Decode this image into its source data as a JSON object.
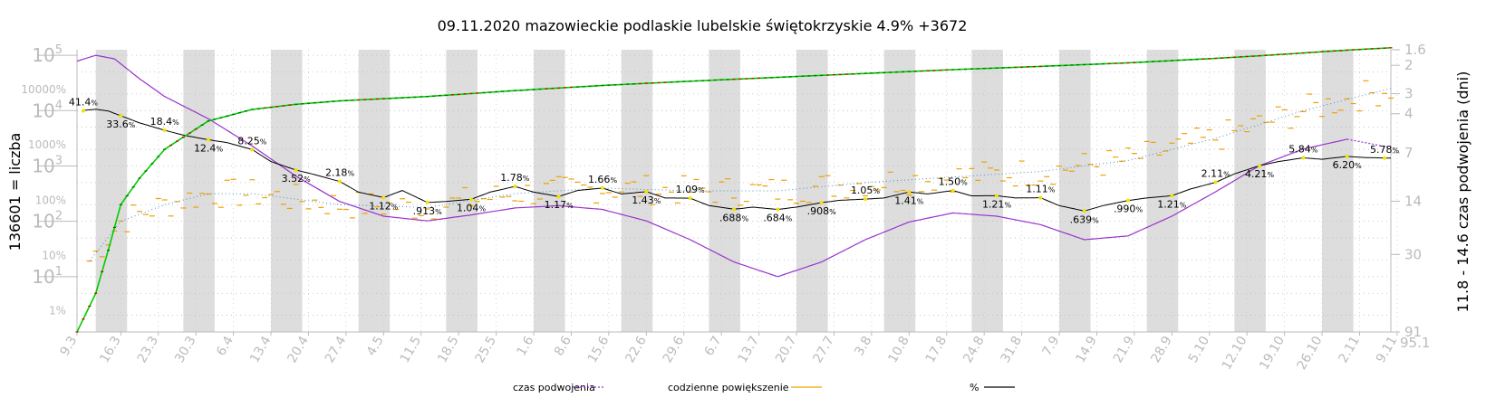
{
  "chart_data": {
    "type": "line",
    "title": "09.11.2020 mazowieckie podlaskie lubelskie świętokrzyskie 4.9% +3672",
    "ylabel_left": "136601 = liczba",
    "ylabel_right": "11.8 - 14.6 czas podwojenia (dni)",
    "x_ticks": [
      "9.3",
      "16.3",
      "23.3",
      "30.3",
      "6.4",
      "13.4",
      "20.4",
      "27.4",
      "4.5",
      "11.5",
      "18.5",
      "25.5",
      "1.6",
      "8.6",
      "15.6",
      "22.6",
      "29.6",
      "6.7",
      "13.7",
      "20.7",
      "27.7",
      "3.8",
      "10.8",
      "17.8",
      "24.8",
      "31.8",
      "7.9",
      "14.9",
      "21.9",
      "28.9",
      "5.10",
      "12.10",
      "19.10",
      "26.10",
      "2.11",
      "9.11"
    ],
    "y_left_ticks_count": [
      {
        "base": "10",
        "exp": "5",
        "value": 100000
      },
      {
        "base": "10",
        "exp": "4",
        "value": 10000
      },
      {
        "base": "10",
        "exp": "3",
        "value": 1000
      },
      {
        "base": "10",
        "exp": "2",
        "value": 100
      },
      {
        "base": "10",
        "exp": "1",
        "value": 10
      }
    ],
    "y_left_ticks_percent": [
      "10000%",
      "1000%",
      "100%",
      "10%",
      "1%"
    ],
    "y_right_ticks": [
      "1.6",
      "2",
      "3",
      "4",
      "7",
      "14",
      "30",
      "91"
    ],
    "x_right_extra": "95.1",
    "grid": true,
    "legend_position": "bottom",
    "legend": [
      {
        "label": "czas podwojenia",
        "color": "#9933cc",
        "style": "dotted"
      },
      {
        "label": "codzienne powiększenie",
        "color": "#f0a000",
        "style": "solid"
      },
      {
        "label": "%",
        "color": "#000000",
        "style": "solid"
      }
    ],
    "percent_annotations": [
      {
        "value": "41.4",
        "day": 1
      },
      {
        "value": "33.6",
        "day": 7
      },
      {
        "value": "18.4",
        "day": 14
      },
      {
        "value": "12.4",
        "day": 21
      },
      {
        "value": "8.25",
        "day": 28
      },
      {
        "value": "3.52",
        "day": 35
      },
      {
        "value": "2.18",
        "day": 42
      },
      {
        "value": "1.12",
        "day": 49
      },
      {
        "value": ".913",
        "day": 56
      },
      {
        "value": "1.04",
        "day": 63
      },
      {
        "value": "1.78",
        "day": 70
      },
      {
        "value": "1.17",
        "day": 77
      },
      {
        "value": "1.66",
        "day": 84
      },
      {
        "value": "1.43",
        "day": 91
      },
      {
        "value": "1.09",
        "day": 98
      },
      {
        "value": ".688",
        "day": 105
      },
      {
        "value": ".684",
        "day": 112
      },
      {
        "value": ".908",
        "day": 119
      },
      {
        "value": "1.05",
        "day": 126
      },
      {
        "value": "1.41",
        "day": 133
      },
      {
        "value": "1.50",
        "day": 140
      },
      {
        "value": "1.21",
        "day": 147
      },
      {
        "value": "1.11",
        "day": 154
      },
      {
        "value": ".639",
        "day": 161
      },
      {
        "value": ".990",
        "day": 168
      },
      {
        "value": "1.21",
        "day": 175
      },
      {
        "value": "2.11",
        "day": 182
      },
      {
        "value": "4.21",
        "day": 189
      },
      {
        "value": "5.84",
        "day": 196
      },
      {
        "value": "6.20",
        "day": 203
      },
      {
        "value": "5.78",
        "day": 209
      }
    ],
    "pct_unit": "%",
    "series_cumulative_count": {
      "days": [
        0,
        3,
        5,
        7,
        10,
        14,
        21,
        28,
        35,
        42,
        56,
        70,
        84,
        98,
        112,
        126,
        140,
        154,
        168,
        182,
        189,
        196,
        203,
        210
      ],
      "values": [
        1,
        5,
        30,
        200,
        600,
        2000,
        6500,
        10500,
        13000,
        15000,
        18000,
        23000,
        28500,
        34000,
        40000,
        47000,
        55000,
        63000,
        73000,
        88000,
        98000,
        110000,
        124000,
        136601
      ]
    },
    "series_percent_smoothed": {
      "days": [
        0,
        3,
        5,
        7,
        10,
        14,
        17,
        21,
        24,
        28,
        31,
        35,
        38,
        42,
        45,
        49,
        52,
        56,
        59,
        63,
        66,
        70,
        73,
        77,
        80,
        84,
        87,
        91,
        94,
        98,
        101,
        105,
        108,
        112,
        115,
        119,
        122,
        126,
        129,
        133,
        136,
        140,
        143,
        147,
        150,
        154,
        157,
        161,
        164,
        168,
        171,
        175,
        178,
        182,
        185,
        189,
        192,
        196,
        199,
        203,
        206,
        210
      ],
      "values": [
        41.4,
        44,
        41,
        33.6,
        25,
        18.4,
        15,
        12.4,
        11,
        8.25,
        5,
        3.52,
        2.9,
        2.18,
        1.4,
        1.12,
        1.5,
        0.913,
        0.95,
        1.04,
        1.4,
        1.78,
        1.4,
        1.17,
        1.5,
        1.66,
        1.3,
        1.43,
        1.1,
        1.09,
        0.8,
        0.688,
        0.75,
        0.684,
        0.75,
        0.908,
        1.0,
        1.05,
        1.1,
        1.41,
        1.3,
        1.5,
        1.2,
        1.21,
        1.1,
        1.11,
        0.8,
        0.639,
        0.8,
        0.99,
        1.1,
        1.21,
        1.6,
        2.11,
        3,
        4.21,
        5,
        5.84,
        5.5,
        6.2,
        5.9,
        5.78
      ]
    },
    "series_doubling_time_curve": {
      "days": [
        0,
        3,
        6,
        10,
        14,
        21,
        28,
        35,
        42,
        49,
        56,
        63,
        70,
        77,
        84,
        91,
        98,
        105,
        112,
        119,
        126,
        133,
        140,
        147,
        154,
        161,
        168,
        175,
        182,
        189,
        196,
        203,
        206,
        210
      ],
      "values": [
        2.0,
        1.75,
        1.9,
        3.0,
        4.5,
        7.5,
        14,
        28,
        50,
        70,
        78,
        68,
        58,
        55,
        60,
        78,
        120,
        200,
        280,
        200,
        120,
        80,
        65,
        70,
        85,
        120,
        110,
        70,
        40,
        22,
        15,
        12,
        13,
        14.6
      ]
    },
    "series_daily_growth_trend": {
      "days": [
        0,
        7,
        14,
        21,
        28,
        35,
        42,
        56,
        70,
        84,
        98,
        112,
        126,
        140,
        154,
        168,
        182,
        196,
        210
      ],
      "values": [
        1.0,
        2.0,
        2.3,
        2.5,
        2.5,
        2.4,
        2.3,
        2.25,
        2.5,
        2.6,
        2.55,
        2.55,
        2.7,
        2.8,
        2.9,
        3.1,
        3.5,
        4.0,
        4.4
      ]
    }
  }
}
